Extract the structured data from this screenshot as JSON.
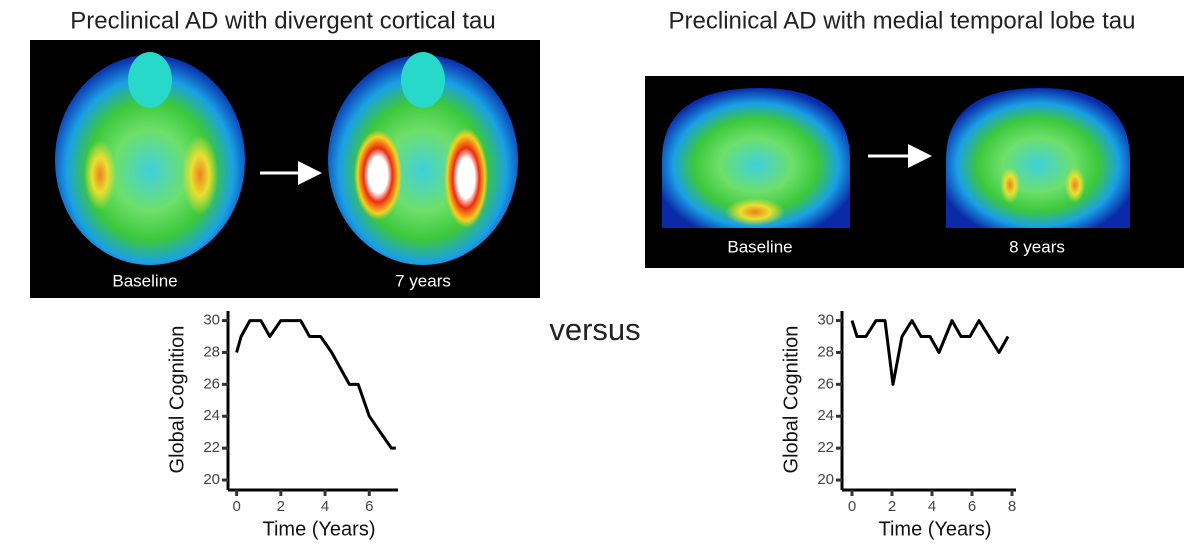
{
  "panels": [
    {
      "title": "Preclinical AD with divergent cortical tau",
      "image_labels": [
        "Baseline",
        "7 years"
      ]
    },
    {
      "title": "Preclinical AD with medial temporal lobe tau",
      "image_labels": [
        "Baseline",
        "8 years"
      ]
    }
  ],
  "versus": "versus",
  "chart_data": [
    {
      "type": "line",
      "xlabel": "Time (Years)",
      "ylabel": "Global Cognition",
      "x": [
        0,
        0.2,
        0.6,
        1.1,
        1.5,
        2,
        2.9,
        3.3,
        3.8,
        4.3,
        4.7,
        5.1,
        5.5,
        6,
        6.5,
        7,
        7.2
      ],
      "values": [
        28,
        29,
        30,
        30,
        29,
        30,
        30,
        29,
        29,
        28,
        27,
        26,
        26,
        24,
        23,
        22,
        22
      ],
      "color": "#000000",
      "xlim": [
        -0.3,
        7.3
      ],
      "xticks": [
        0,
        2,
        4,
        6
      ],
      "ylim": [
        19.5,
        30.6
      ],
      "yticks": [
        20,
        22,
        24,
        26,
        28,
        30
      ]
    },
    {
      "type": "line",
      "xlabel": "Time (Years)",
      "ylabel": "Global Cognition",
      "x": [
        0,
        0.25,
        0.7,
        1.2,
        1.65,
        2.05,
        2.5,
        3,
        3.45,
        3.9,
        4.35,
        5,
        5.45,
        5.9,
        6.35,
        7.35,
        7.8
      ],
      "values": [
        30,
        29,
        29,
        30,
        30,
        26,
        29,
        30,
        29,
        29,
        28,
        30,
        29,
        29,
        30,
        28,
        29
      ],
      "color": "#000000",
      "xlim": [
        -0.4,
        8.2
      ],
      "xticks": [
        0,
        2,
        4,
        6,
        8
      ],
      "ylim": [
        19.5,
        30.6
      ],
      "yticks": [
        20,
        22,
        24,
        26,
        28,
        30
      ]
    }
  ]
}
